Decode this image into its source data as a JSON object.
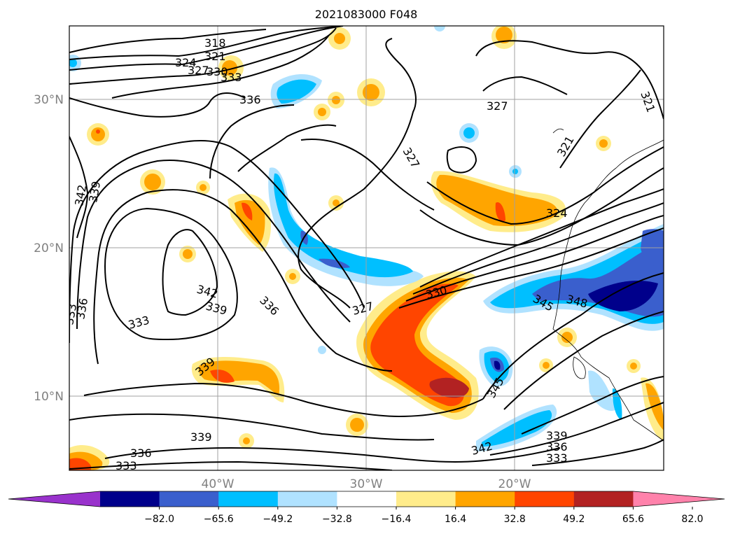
{
  "title": "2021083000 F048",
  "axes": {
    "lat_labels": [
      "30°N",
      "20°N",
      "10°N"
    ],
    "lon_labels": [
      "40°W",
      "30°W",
      "20°W"
    ]
  },
  "colorbar": {
    "ticks": [
      "−82.0",
      "−65.6",
      "−49.2",
      "−32.8",
      "−16.4",
      "16.4",
      "32.8",
      "49.2",
      "65.6",
      "82.0"
    ],
    "colors": [
      "#9932cc",
      "#00008b",
      "#3a5fcd",
      "#00bfff",
      "#b0e2ff",
      "#ffffff",
      "#ffec8b",
      "#ffa500",
      "#ff4500",
      "#b22222",
      "#ff82ab"
    ]
  },
  "contour_labels": [
    "318",
    "321",
    "324",
    "327",
    "330",
    "333",
    "336",
    "327",
    "321",
    "321",
    "327",
    "324",
    "342",
    "339",
    "342",
    "339",
    "336",
    "333",
    "336",
    "333",
    "327",
    "330",
    "345",
    "348",
    "339",
    "336",
    "333",
    "339",
    "336",
    "333",
    "342",
    "339",
    "345"
  ]
}
